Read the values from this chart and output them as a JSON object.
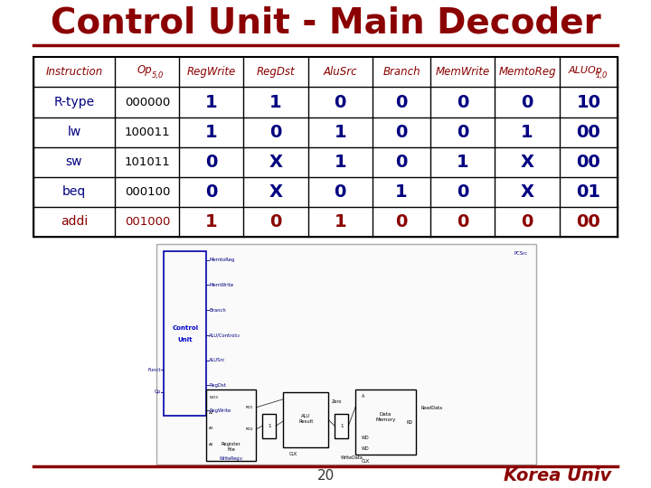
{
  "title": "Control Unit - Main Decoder",
  "title_color": "#8B0000",
  "title_fontsize": 28,
  "bg_color": "#FFFFFF",
  "header_row": [
    "Instruction",
    "Op",
    "RegWrite",
    "RegDst",
    "AluSrc",
    "Branch",
    "MemWrite",
    "MemtoReg",
    "ALUOp"
  ],
  "header_color": "#8B0000",
  "data_rows": [
    [
      "R-type",
      "000000",
      "1",
      "1",
      "0",
      "0",
      "0",
      "0",
      "10"
    ],
    [
      "lw",
      "100011",
      "1",
      "0",
      "1",
      "0",
      "0",
      "1",
      "00"
    ],
    [
      "sw",
      "101011",
      "0",
      "X",
      "1",
      "0",
      "1",
      "X",
      "00"
    ],
    [
      "beq",
      "000100",
      "0",
      "X",
      "0",
      "1",
      "0",
      "X",
      "01"
    ],
    [
      "addi",
      "001000",
      "1",
      "0",
      "1",
      "0",
      "0",
      "0",
      "00"
    ]
  ],
  "row_colors_instruction": [
    "#000080",
    "#000080",
    "#000080",
    "#000080",
    "#8B0000"
  ],
  "row_colors_opcode": [
    "#000000",
    "#000000",
    "#000000",
    "#000000",
    "#8B0000"
  ],
  "row_colors_data": [
    "#000080",
    "#000080",
    "#000080",
    "#000080",
    "#8B0000"
  ],
  "page_number": "20",
  "footer_text": "Korea Univ",
  "footer_color": "#8B0000",
  "line_color": "#8B0000",
  "table_border_color": "#000000",
  "col_widths": [
    1.4,
    1.1,
    1.1,
    1.1,
    1.1,
    1.0,
    1.1,
    1.1,
    1.0
  ]
}
